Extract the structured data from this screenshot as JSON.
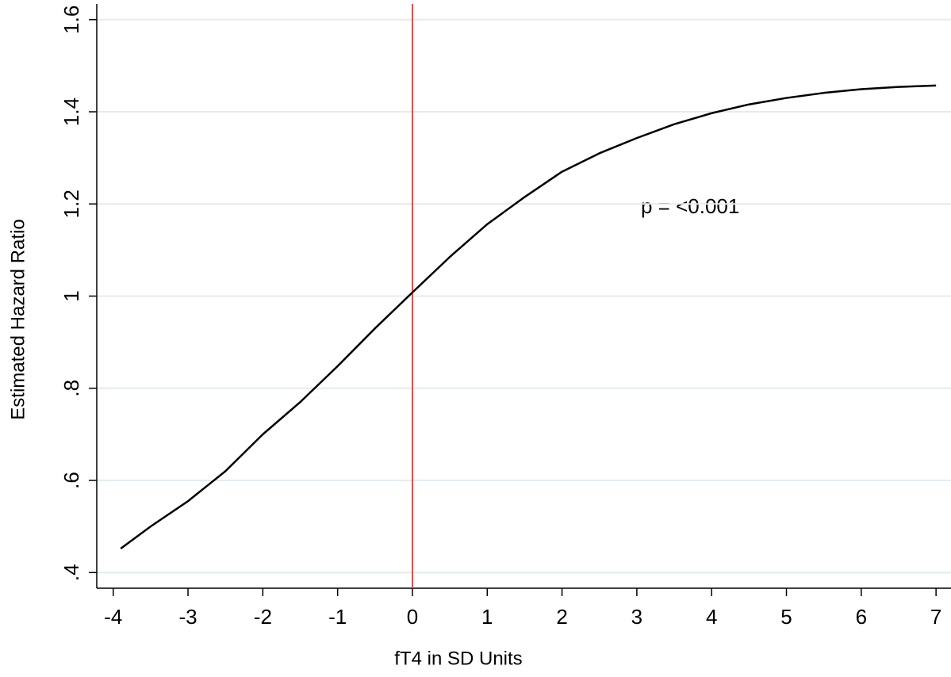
{
  "chart_data": {
    "type": "line",
    "x_label": "fT4 in SD Units",
    "y_label": "Estimated Hazard Ratio",
    "annotation": "p = <0.001",
    "x": [
      -3.9,
      -3.5,
      -3,
      -2.5,
      -2,
      -1.5,
      -1,
      -0.5,
      0,
      0.5,
      1,
      1.5,
      2,
      2.5,
      3,
      3.5,
      4,
      4.5,
      5,
      5.5,
      6,
      6.5,
      7
    ],
    "values": [
      0.452,
      0.5,
      0.555,
      0.62,
      0.7,
      0.77,
      0.848,
      0.93,
      1.008,
      1.085,
      1.156,
      1.215,
      1.27,
      1.31,
      1.343,
      1.373,
      1.397,
      1.416,
      1.43,
      1.441,
      1.449,
      1.454,
      1.457
    ],
    "color": "#000000",
    "vline": 0,
    "vline_color": "#d9534f",
    "xlim": [
      -4.22,
      7.2
    ],
    "ylim": [
      0.366,
      1.634
    ],
    "xticks": [
      -4,
      -3,
      -2,
      -1,
      0,
      1,
      2,
      3,
      4,
      5,
      6,
      7
    ],
    "yticks": [
      {
        "value": 0.4,
        "label": ".4"
      },
      {
        "value": 0.6,
        "label": ".6"
      },
      {
        "value": 0.8,
        "label": ".8"
      },
      1,
      1.2,
      1.4,
      1.6
    ],
    "grid": true
  }
}
